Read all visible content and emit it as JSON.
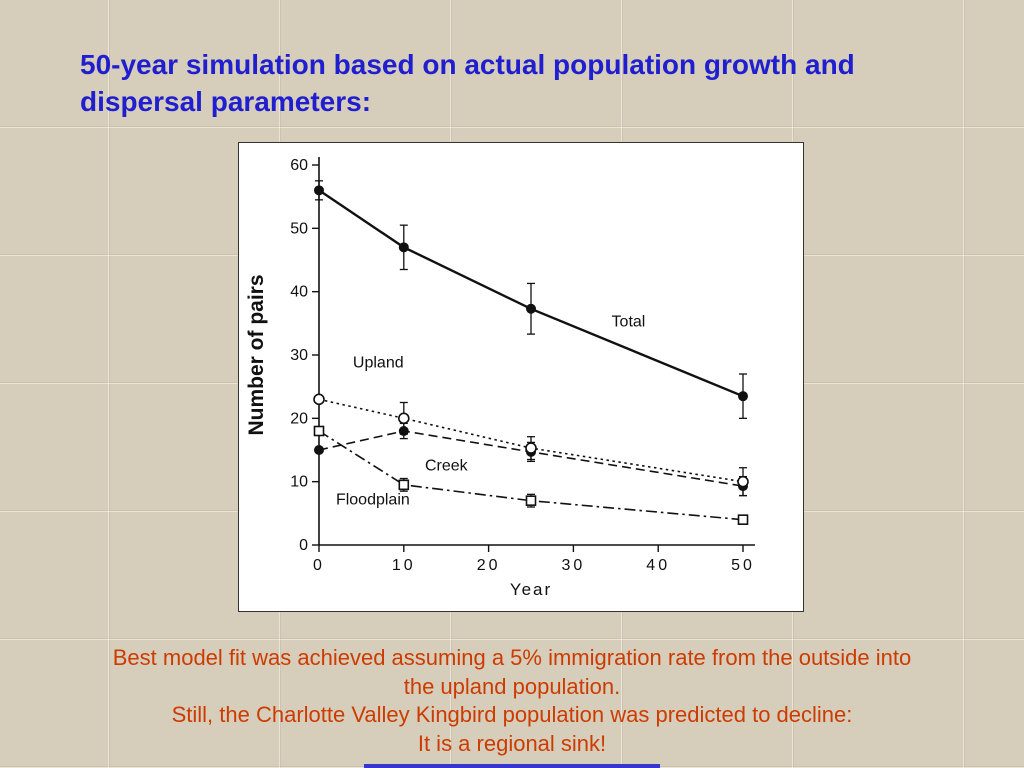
{
  "slide": {
    "title_lines": [
      "50-year simulation based on actual population growth and",
      "dispersal parameters:"
    ],
    "caption_lines": [
      "Best model fit was achieved assuming a 5% immigration rate from the outside into",
      "the upland population.",
      "Still, the Charlotte Valley Kingbird population was predicted to decline:",
      "It is a regional sink!"
    ]
  },
  "colors": {
    "background": "#d7cdbb",
    "title": "#1f1fd0",
    "caption": "#cc3c00",
    "footer_bar": "#3636cf",
    "chart_ink": "#111111",
    "chart_bg": "#ffffff"
  },
  "chart_data": {
    "type": "line",
    "title": "",
    "xlabel": "Year",
    "ylabel": "Number of pairs",
    "xlim": [
      0,
      50
    ],
    "ylim": [
      0,
      60
    ],
    "grid": false,
    "legend": "inline-labels",
    "x": [
      0,
      10,
      25,
      50
    ],
    "x_ticks": [
      0,
      10,
      20,
      30,
      40,
      50
    ],
    "x_tick_labels": [
      "0",
      "10",
      "20",
      "30",
      "40",
      "50"
    ],
    "y_ticks": [
      0,
      10,
      20,
      30,
      40,
      50,
      60
    ],
    "y_tick_labels": [
      "0",
      "10",
      "20",
      "30",
      "40",
      "50",
      "60"
    ],
    "series": [
      {
        "name": "Total",
        "marker": "filled-circle",
        "line": "solid",
        "values": [
          56,
          47,
          37.3,
          23.5
        ],
        "errors": [
          1.5,
          3.5,
          4,
          3.5
        ]
      },
      {
        "name": "Upland",
        "marker": "open-circle",
        "line": "dotted",
        "values": [
          23,
          20,
          15.3,
          10
        ],
        "errors": [
          0,
          2.5,
          1.8,
          2.2
        ]
      },
      {
        "name": "Creek",
        "marker": "filled-circle",
        "line": "dashed",
        "values": [
          15,
          18,
          14.7,
          9.3
        ],
        "errors": [
          0,
          1.2,
          1.5,
          1.5
        ]
      },
      {
        "name": "Floodplain",
        "marker": "open-square",
        "line": "dash-dot",
        "values": [
          18,
          9.5,
          7,
          4
        ],
        "errors": [
          0,
          1,
          1,
          0.7
        ]
      }
    ],
    "annotations": [
      {
        "text": "Total",
        "x": 34.5,
        "y": 34.5
      },
      {
        "text": "Upland",
        "x": 4,
        "y": 28
      },
      {
        "text": "Creek",
        "x": 12.5,
        "y": 11.8
      },
      {
        "text": "Floodplain",
        "x": 2,
        "y": 6.4
      }
    ]
  }
}
